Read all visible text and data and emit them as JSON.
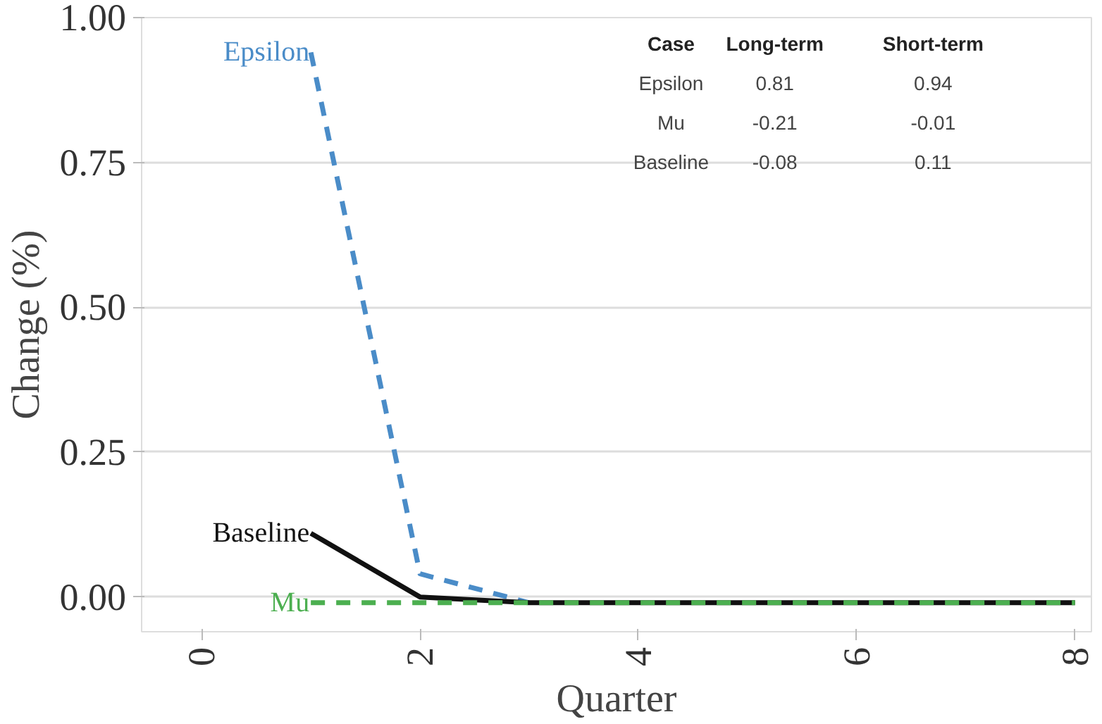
{
  "chart_data": {
    "type": "line",
    "xlabel": "Quarter",
    "ylabel": "Change (%)",
    "x": [
      1,
      2,
      3,
      4,
      5,
      6,
      7,
      8
    ],
    "series": [
      {
        "name": "Epsilon",
        "color": "#4a8cc8",
        "line_style": "dashed",
        "values": [
          0.94,
          0.04,
          -0.01,
          null,
          null,
          null,
          null,
          null
        ]
      },
      {
        "name": "Baseline",
        "color": "#111111",
        "line_style": "solid",
        "values": [
          0.11,
          0.0,
          -0.01,
          -0.01,
          -0.01,
          -0.01,
          -0.01,
          -0.01
        ]
      },
      {
        "name": "Mu",
        "color": "#4caf50",
        "line_style": "dashed",
        "values": [
          -0.01,
          -0.01,
          -0.01,
          -0.01,
          -0.01,
          -0.01,
          -0.01,
          -0.01
        ]
      }
    ],
    "xlim": [
      -0.55,
      8.15
    ],
    "ylim": [
      -0.06,
      1.0
    ],
    "xticks": [
      0,
      2,
      4,
      6,
      8
    ],
    "yticks": [
      {
        "value": 0,
        "label": "0.00"
      },
      {
        "value": 0.25,
        "label": "0.25"
      },
      {
        "value": 0.5,
        "label": "0.50"
      },
      {
        "value": 0.75,
        "label": "0.75"
      },
      {
        "value": 1,
        "label": "1.00"
      }
    ],
    "grid": "y",
    "annotations": [
      "Case",
      "Long-term",
      "Short-term",
      "Epsilon",
      "0.81",
      "0.94",
      "Mu",
      "-0.21",
      "-0.01",
      "Baseline",
      "-0.08",
      "0.11"
    ]
  }
}
